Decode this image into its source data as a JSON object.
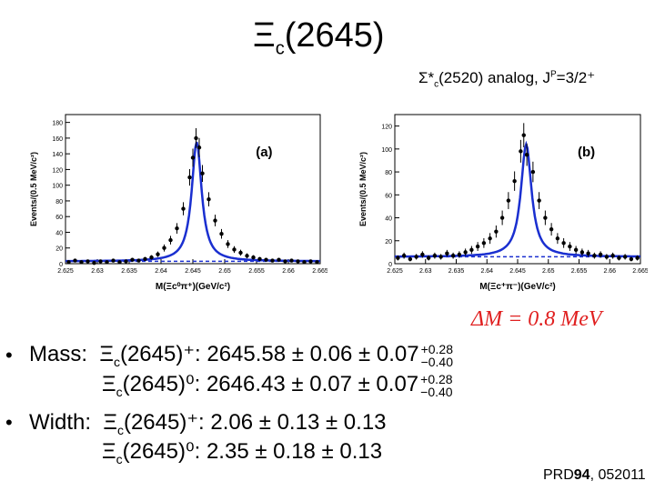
{
  "title": {
    "main": "Ξ",
    "sub": "c",
    "rest": "(2645)"
  },
  "subtitle": {
    "sigma": "Σ*",
    "sub": "c",
    "mid": "(2520) analog, J",
    "sup": "P",
    "end": "=3/2⁺"
  },
  "delta_m": "ΔM = 0.8 MeV",
  "results": {
    "bullet": "•",
    "mass_label": "Mass:",
    "width_label": "Width:",
    "mass_plus": {
      "particle": "Ξ",
      "sub": "c",
      "state": "(2645)⁺:",
      "value": "2645.58 ± 0.06 ± 0.07",
      "up": "+0.28",
      "down": "−0.40"
    },
    "mass_zero": {
      "particle": "Ξ",
      "sub": "c",
      "state": "(2645)⁰:",
      "value": "2646.43 ± 0.07 ± 0.07",
      "up": "+0.28",
      "down": "−0.40"
    },
    "width_plus": {
      "particle": "Ξ",
      "sub": "c",
      "state": "(2645)⁺:",
      "value": "2.06 ± 0.13 ± 0.13"
    },
    "width_zero": {
      "particle": "Ξ",
      "sub": "c",
      "state": "(2645)⁰:",
      "value": "2.35 ± 0.18 ± 0.13"
    }
  },
  "reference": {
    "pre": "PRD",
    "bold": "94",
    "post": ", 052011"
  },
  "chart_data": [
    {
      "type": "scatter",
      "panel_label": "(a)",
      "xlabel": "M(Ξc⁰π⁺)(GeV/c²)",
      "ylabel": "Events/(0.5 MeV/c²)",
      "xlim": [
        2.625,
        2.665
      ],
      "ylim": [
        0,
        190
      ],
      "xticks": [
        "2.625",
        "2.63",
        "2.635",
        "2.64",
        "2.645",
        "2.65",
        "2.655",
        "2.66",
        "2.665"
      ],
      "yticks": [
        0,
        20,
        40,
        60,
        80,
        100,
        120,
        140,
        160,
        180
      ],
      "fit_peak": 2.6456,
      "fit_amplitude": 152,
      "fit_width": 0.0019,
      "fit_background": 3,
      "points": [
        [
          2.6255,
          2
        ],
        [
          2.6265,
          4
        ],
        [
          2.6275,
          2
        ],
        [
          2.6285,
          3
        ],
        [
          2.6295,
          1
        ],
        [
          2.6305,
          3
        ],
        [
          2.6315,
          2
        ],
        [
          2.6325,
          4
        ],
        [
          2.6335,
          2
        ],
        [
          2.6345,
          3
        ],
        [
          2.6355,
          5
        ],
        [
          2.6365,
          4
        ],
        [
          2.6375,
          6
        ],
        [
          2.6385,
          8
        ],
        [
          2.6395,
          12
        ],
        [
          2.6405,
          20
        ],
        [
          2.6415,
          30
        ],
        [
          2.6425,
          45
        ],
        [
          2.6435,
          70
        ],
        [
          2.6445,
          110
        ],
        [
          2.645,
          135
        ],
        [
          2.6455,
          160
        ],
        [
          2.646,
          148
        ],
        [
          2.6465,
          115
        ],
        [
          2.6475,
          82
        ],
        [
          2.6485,
          55
        ],
        [
          2.6495,
          38
        ],
        [
          2.6505,
          25
        ],
        [
          2.6515,
          18
        ],
        [
          2.6525,
          14
        ],
        [
          2.6535,
          10
        ],
        [
          2.6545,
          8
        ],
        [
          2.6555,
          6
        ],
        [
          2.6565,
          5
        ],
        [
          2.6575,
          4
        ],
        [
          2.6585,
          5
        ],
        [
          2.6595,
          3
        ],
        [
          2.6605,
          4
        ],
        [
          2.6615,
          3
        ],
        [
          2.6625,
          2
        ],
        [
          2.6635,
          3
        ],
        [
          2.6645,
          2
        ]
      ]
    },
    {
      "type": "scatter",
      "panel_label": "(b)",
      "xlabel": "M(Ξc⁺π⁻)(GeV/c²)",
      "ylabel": "Events/(0.5 MeV/c²)",
      "xlim": [
        2.625,
        2.665
      ],
      "ylim": [
        0,
        130
      ],
      "xticks": [
        "2.625",
        "2.63",
        "2.635",
        "2.64",
        "2.645",
        "2.65",
        "2.655",
        "2.66",
        "2.665"
      ],
      "yticks": [
        0,
        20,
        40,
        60,
        80,
        100,
        120
      ],
      "fit_peak": 2.6464,
      "fit_amplitude": 98,
      "fit_width": 0.0021,
      "fit_background": 6,
      "points": [
        [
          2.6255,
          5
        ],
        [
          2.6265,
          7
        ],
        [
          2.6275,
          4
        ],
        [
          2.6285,
          6
        ],
        [
          2.6295,
          8
        ],
        [
          2.6305,
          5
        ],
        [
          2.6315,
          7
        ],
        [
          2.6325,
          6
        ],
        [
          2.6335,
          9
        ],
        [
          2.6345,
          7
        ],
        [
          2.6355,
          8
        ],
        [
          2.6365,
          10
        ],
        [
          2.6375,
          12
        ],
        [
          2.6385,
          15
        ],
        [
          2.6395,
          18
        ],
        [
          2.6405,
          22
        ],
        [
          2.6415,
          28
        ],
        [
          2.6425,
          40
        ],
        [
          2.6435,
          55
        ],
        [
          2.6445,
          72
        ],
        [
          2.6455,
          98
        ],
        [
          2.646,
          112
        ],
        [
          2.6465,
          95
        ],
        [
          2.6475,
          80
        ],
        [
          2.6485,
          55
        ],
        [
          2.6495,
          40
        ],
        [
          2.6505,
          30
        ],
        [
          2.6515,
          22
        ],
        [
          2.6525,
          18
        ],
        [
          2.6535,
          15
        ],
        [
          2.6545,
          12
        ],
        [
          2.6555,
          10
        ],
        [
          2.6565,
          9
        ],
        [
          2.6575,
          7
        ],
        [
          2.6585,
          8
        ],
        [
          2.6595,
          6
        ],
        [
          2.6605,
          7
        ],
        [
          2.6615,
          5
        ],
        [
          2.6625,
          6
        ],
        [
          2.6635,
          4
        ],
        [
          2.6645,
          5
        ]
      ]
    }
  ]
}
